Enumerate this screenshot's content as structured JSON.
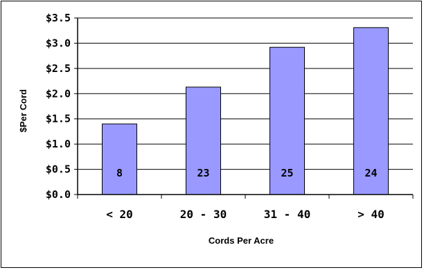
{
  "chart_data": {
    "type": "bar",
    "title": "",
    "xlabel": "Cords Per Acre",
    "ylabel": "$Per Cord",
    "categories": [
      "< 20",
      "20 - 30",
      "31 - 40",
      "> 40"
    ],
    "values": [
      1.4,
      2.13,
      2.92,
      3.31
    ],
    "data_labels": [
      "8",
      "23",
      "25",
      "24"
    ],
    "ylim": [
      0,
      3.5
    ],
    "yticks": [
      0,
      0.5,
      1.0,
      1.5,
      2.0,
      2.5,
      3.0,
      3.5
    ],
    "ytick_labels": [
      "$0.0",
      "$0.5",
      "$1.0",
      "$1.5",
      "$2.0",
      "$2.5",
      "$3.0",
      "$3.5"
    ],
    "grid": true,
    "bar_color": "#9999ff",
    "bar_edge_color": "#000000"
  }
}
